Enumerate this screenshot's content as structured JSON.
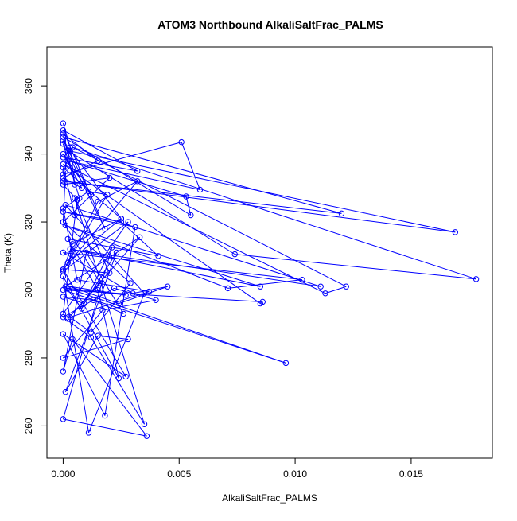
{
  "chart_data": {
    "type": "line",
    "title": "ATOM3 Northbound AlkaliSaltFrac_PALMS",
    "xlabel": "AlkaliSaltFrac_PALMS",
    "ylabel": "Theta (K)",
    "xlim": [
      -0.0007,
      0.0185
    ],
    "ylim": [
      250.5,
      371.5
    ],
    "x_ticks": [
      0,
      0.005,
      0.01,
      0.015
    ],
    "x_tick_labels": [
      "0.000",
      "0.005",
      "0.010",
      "0.015"
    ],
    "y_ticks": [
      260,
      280,
      300,
      320,
      340,
      360
    ],
    "y_tick_labels": [
      "260",
      "280",
      "300",
      "320",
      "340",
      "360"
    ],
    "grid": false,
    "legend": "none",
    "marker": "open-circle",
    "color": "#0000ff",
    "series": [
      {
        "x": [
          0,
          0.0003,
          0.0005,
          0,
          0.0015,
          0,
          0.0008,
          0,
          0.0012,
          0,
          0.0025,
          0,
          0.0005,
          0.0007,
          0,
          0.0018,
          0,
          0.0032,
          0,
          0.0003,
          0,
          0.0051,
          0.0059,
          0.0002,
          0.0053,
          0.0055,
          0,
          0.012,
          0,
          0.0169,
          0.0002,
          0.0074,
          0.0178,
          0.0004,
          0.0122,
          0.0113,
          0,
          0.0085,
          0.0086,
          0,
          0.0096,
          0.0002,
          0.0027,
          0.0003,
          0.0024,
          0.0045,
          0.003,
          0,
          0.0103,
          0.0071,
          0.0001,
          0.0085,
          0.0003,
          0.0111,
          0.0001,
          0.0035,
          0.0011,
          0,
          0.0024,
          0.0015,
          0.0002,
          0.0041,
          0.0025,
          0,
          0.0031,
          0.0018,
          0,
          0.0027,
          0,
          0.002,
          0.0005,
          0.0035,
          0.0012,
          0,
          0.0022,
          0.004,
          0.0017,
          0,
          0.0028,
          0.0015,
          0.0001,
          0.0023,
          0.0009,
          0,
          0.0013,
          0.0026,
          0.001,
          0,
          0.0004,
          0.0036,
          0,
          0.0021,
          0.0008,
          0.0001,
          0.0033,
          0.0002,
          0.0016,
          0,
          0.0029,
          0.0012,
          0.0003,
          0.0037,
          0.0006,
          0,
          0.0011,
          0.0019,
          0.0002,
          0.0025,
          0.0004,
          0,
          0.0032,
          0.0015,
          0,
          0.0028,
          0,
          0.0006,
          0,
          0.002,
          0,
          0.0001
        ],
        "y": [
          349,
          342,
          331,
          346,
          338,
          333,
          330,
          340,
          328,
          344,
          321,
          336,
          322,
          327,
          343,
          318,
          347,
          335,
          339,
          341,
          334,
          343.5,
          329.5,
          338,
          327.5,
          322,
          345,
          322.5,
          332,
          317,
          341,
          310.5,
          303.2,
          342,
          301,
          299,
          337,
          296,
          296.5,
          300,
          278.5,
          300.5,
          298.5,
          301,
          296,
          301,
          299,
          311,
          303,
          300.5,
          319,
          301,
          312,
          301,
          325,
          299,
          258,
          304,
          274,
          300,
          315,
          310,
          320,
          323,
          318.5,
          263,
          287,
          274.5,
          306,
          305,
          327,
          260.5,
          286,
          292,
          300.5,
          297,
          294,
          280,
          285.5,
          286.5,
          270,
          311,
          296,
          298,
          297,
          293,
          311,
          276,
          285.5,
          257,
          262,
          312.5,
          294.5,
          301,
          315.5,
          291.5,
          302,
          320,
          302,
          287.5,
          292,
          299.5,
          303,
          324,
          329,
          328,
          308,
          321,
          313.5,
          306,
          332,
          326,
          305.5,
          320,
          293,
          326.5,
          331,
          333,
          320,
          335
        ]
      }
    ]
  }
}
